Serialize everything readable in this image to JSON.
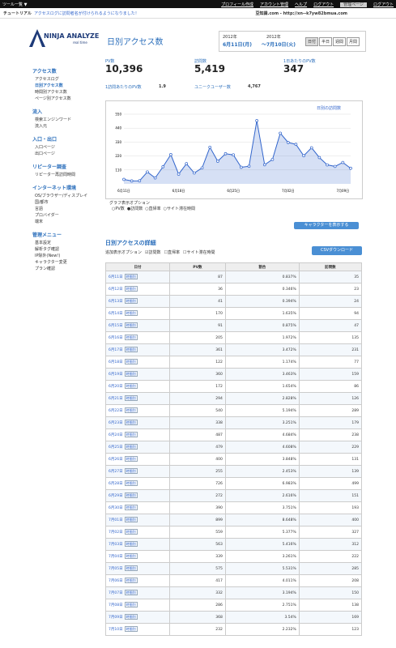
{
  "topbar": {
    "tools": "ツール一覧 ▼",
    "links": [
      "プロフィール作成",
      "アカウント管理",
      "ヘルプ",
      "ログアウト",
      "管理ページ",
      "ログアウト"
    ]
  },
  "notice": {
    "label": "チュートリアル",
    "text": "アクセスログに訪問者名が付けられるようになりました！",
    "site": "豆知識.com - http://xn--k7yw82bmua.com"
  },
  "header": {
    "logo": "NINJA ANALYZE",
    "logo_sub": "real time",
    "title": "日別アクセス数",
    "from_year": "2012年",
    "from": "6月11日(月)",
    "to_year": "2012年",
    "to": "〜7月10日(火)",
    "modes": [
      "日付",
      "半日",
      "週間",
      "月間"
    ]
  },
  "sidebar": [
    {
      "title": "アクセス数",
      "items": [
        "アクセスログ",
        "日別アクセス数",
        "時間別アクセス数",
        "ページ別アクセス数"
      ]
    },
    {
      "title": "流入",
      "items": [
        "検索エンジンワード",
        "流入元"
      ]
    },
    {
      "title": "入口・出口",
      "items": [
        "入口ページ",
        "出口ページ"
      ]
    },
    {
      "title": "リピーター調査",
      "items": [
        "リピーター再訪問時間"
      ]
    },
    {
      "title": "インターネット環境",
      "items": [
        "OS/ブラウザー/ディスプレイ",
        "国/都市",
        "言語",
        "プロバイダー",
        "端末"
      ]
    },
    {
      "title": "管理メニュー",
      "items": [
        "基本設定",
        "解析タグ確認",
        "IP除外(New!)",
        "キャラクター変更",
        "プラン確認"
      ]
    }
  ],
  "stats": [
    {
      "label": "PV数",
      "value": "10,396"
    },
    {
      "label": "訪問数",
      "value": "5,419"
    },
    {
      "label": "1日あたりのPV数",
      "value": "347"
    },
    {
      "label": "1訪問あたりのPV数",
      "value": "1.9"
    },
    {
      "label": "ユニークユーザー数",
      "value": "4,767"
    }
  ],
  "chart": {
    "type": "area",
    "legend": "日別の訪問数",
    "color": "#3366cc",
    "ylim": [
      0,
      550
    ],
    "yticks": [
      110,
      220,
      330,
      440,
      550
    ],
    "xticks": [
      "6月11日",
      "6月18日",
      "6月25日",
      "7月02日",
      "7月09日"
    ]
  },
  "graph_options": {
    "title": "グラフ表示オプション",
    "options": [
      "PV数",
      "訪問数",
      "直帰率",
      "サイト滞在時間"
    ]
  },
  "character_button": "キャラクターを表示する",
  "detail": {
    "title": "日別アクセスの詳細",
    "extra_label": "追加表示オプション",
    "extra": [
      "訪問数",
      "直帰率",
      "サイト滞在時間"
    ],
    "csv": "CSVダウンロード"
  },
  "table": {
    "columns": [
      "日付",
      "PV数",
      "割合",
      "訪問数"
    ],
    "row_button": "時間別",
    "rows": [
      [
        "6月11日",
        "87",
        "0.837%",
        "35"
      ],
      [
        "6月12日",
        "36",
        "0.346%",
        "23"
      ],
      [
        "6月13日",
        "41",
        "0.394%",
        "24"
      ],
      [
        "6月14日",
        "170",
        "1.635%",
        "94"
      ],
      [
        "6月15日",
        "91",
        "0.875%",
        "47"
      ],
      [
        "6月16日",
        "205",
        "1.972%",
        "135"
      ],
      [
        "6月17日",
        "361",
        "3.472%",
        "231"
      ],
      [
        "6月18日",
        "122",
        "1.174%",
        "77"
      ],
      [
        "6月19日",
        "360",
        "3.463%",
        "159"
      ],
      [
        "6月20日",
        "172",
        "1.654%",
        "86"
      ],
      [
        "6月21日",
        "294",
        "2.828%",
        "126"
      ],
      [
        "6月22日",
        "540",
        "5.194%",
        "289"
      ],
      [
        "6月23日",
        "338",
        "3.251%",
        "179"
      ],
      [
        "6月24日",
        "487",
        "4.684%",
        "238"
      ],
      [
        "6月25日",
        "479",
        "4.608%",
        "229"
      ],
      [
        "6月26日",
        "400",
        "3.848%",
        "131"
      ],
      [
        "6月27日",
        "255",
        "2.453%",
        "139"
      ],
      [
        "6月28日",
        "726",
        "6.983%",
        "499"
      ],
      [
        "6月29日",
        "272",
        "2.616%",
        "151"
      ],
      [
        "6月30日",
        "390",
        "3.751%",
        "193"
      ],
      [
        "7月01日",
        "899",
        "8.648%",
        "400"
      ],
      [
        "7月02日",
        "559",
        "5.377%",
        "327"
      ],
      [
        "7月03日",
        "563",
        "5.416%",
        "312"
      ],
      [
        "7月04日",
        "339",
        "3.261%",
        "222"
      ],
      [
        "7月05日",
        "575",
        "5.531%",
        "285"
      ],
      [
        "7月06日",
        "417",
        "4.011%",
        "208"
      ],
      [
        "7月07日",
        "332",
        "3.194%",
        "150"
      ],
      [
        "7月08日",
        "286",
        "2.751%",
        "138"
      ],
      [
        "7月09日",
        "368",
        "3.54%",
        "169"
      ],
      [
        "7月10日",
        "232",
        "2.232%",
        "123"
      ]
    ]
  }
}
